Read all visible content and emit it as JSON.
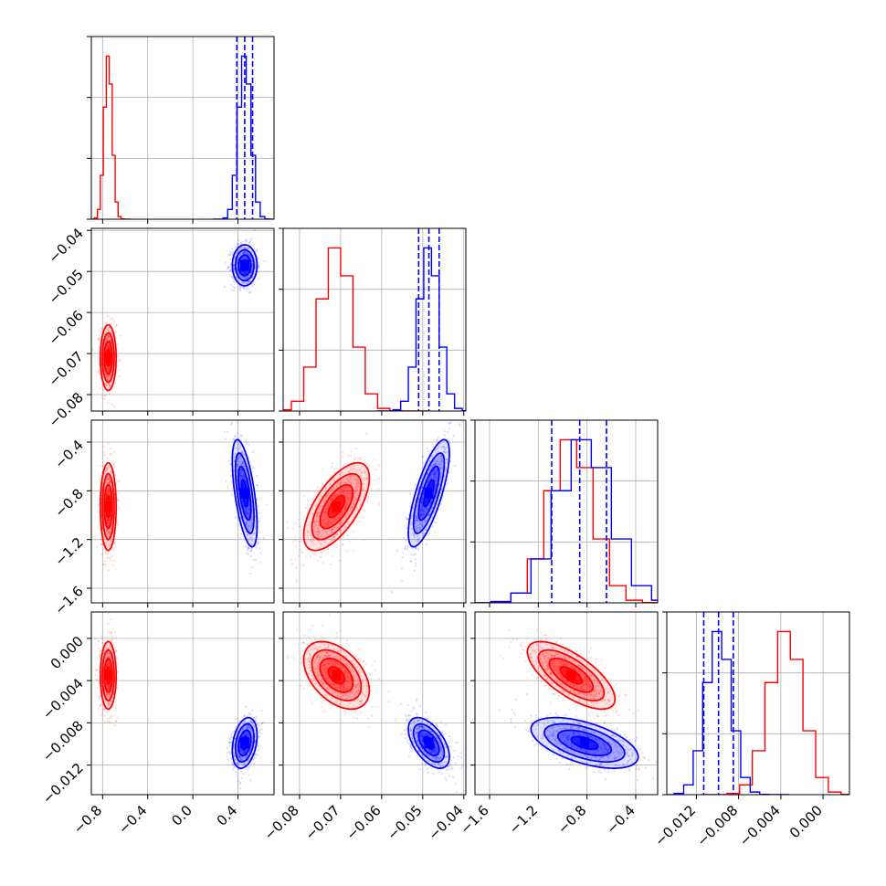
{
  "chart_data": {
    "type": "corner",
    "title": "",
    "grid": true,
    "legend": "none",
    "series": [
      {
        "color": "#ff0000",
        "mean": [
          -0.75,
          -0.071,
          -0.93,
          -0.0035
        ],
        "std": [
          0.035,
          0.004,
          0.18,
          0.0016
        ],
        "corr": [
          [
            1,
            0,
            0,
            0
          ],
          [
            0,
            1,
            0.65,
            -0.45
          ],
          [
            0,
            0.65,
            1,
            -0.7
          ],
          [
            0,
            -0.45,
            -0.7,
            1
          ]
        ]
      },
      {
        "color": "#0000ff",
        "mean": [
          0.46,
          -0.0485,
          -0.82,
          -0.0099
        ],
        "std": [
          0.055,
          0.0025,
          0.22,
          0.0012
        ],
        "quantiles": [
          [
            0.39,
            0.46,
            0.53
          ],
          [
            -0.051,
            -0.0485,
            -0.046
          ],
          [
            -1.09,
            -0.86,
            -0.64
          ],
          [
            -0.0113,
            -0.0099,
            -0.0085
          ]
        ],
        "corr": [
          [
            1,
            0,
            -0.6,
            0.3
          ],
          [
            0,
            1,
            0.75,
            -0.55
          ],
          [
            -0.6,
            0.75,
            1,
            -0.55
          ],
          [
            0.3,
            -0.55,
            -0.55,
            1
          ]
        ]
      }
    ],
    "params": [
      {
        "range": [
          -0.9,
          0.72
        ],
        "ticks": [
          -0.8,
          -0.4,
          0.0,
          0.4
        ],
        "tick_labels": [
          "−0.8",
          "−0.4",
          "0.0",
          "0.4"
        ]
      },
      {
        "range": [
          -0.084,
          -0.0395
        ],
        "ticks": [
          -0.08,
          -0.07,
          -0.06,
          -0.05,
          -0.04
        ],
        "tick_labels": [
          "−0.08",
          "−0.07",
          "−0.06",
          "−0.05",
          "−0.04"
        ]
      },
      {
        "range": [
          -1.72,
          -0.22
        ],
        "ticks": [
          -1.6,
          -1.2,
          -0.8,
          -0.4
        ],
        "tick_labels": [
          "−1.6",
          "−1.2",
          "−0.8",
          "−0.4"
        ]
      },
      {
        "range": [
          -0.0148,
          0.0025
        ],
        "ticks": [
          -0.012,
          -0.008,
          -0.004,
          0.0
        ],
        "tick_labels": [
          "−0.012",
          "−0.008",
          "−0.004",
          "0.000"
        ]
      }
    ]
  }
}
